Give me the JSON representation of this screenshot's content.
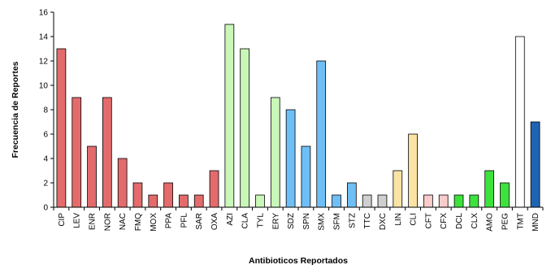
{
  "chart_data": {
    "type": "bar",
    "xlabel": "Antibioticos Reportados",
    "ylabel": "Frecuencia de Reportes",
    "ylim": [
      0,
      16
    ],
    "yticks": [
      0,
      2,
      4,
      6,
      8,
      10,
      12,
      14,
      16
    ],
    "grid": false,
    "legend": "none",
    "categories": [
      "CIP",
      "LEV",
      "ENR",
      "NOR",
      "NAC",
      "FMQ",
      "MOX",
      "PPA",
      "PFL",
      "SAR",
      "OXA",
      "AZI",
      "CLA",
      "TYL",
      "ERY",
      "SDZ",
      "SPN",
      "SMX",
      "SFM",
      "STZ",
      "TTC",
      "DXC",
      "LIN",
      "CLI",
      "CFT",
      "CFX",
      "DCL",
      "CLX",
      "AMO",
      "PEG",
      "TMT",
      "MND"
    ],
    "values": [
      13,
      9,
      5,
      9,
      4,
      2,
      1,
      2,
      1,
      1,
      3,
      15,
      13,
      1,
      9,
      8,
      5,
      12,
      1,
      2,
      1,
      1,
      3,
      6,
      1,
      1,
      1,
      1,
      3,
      2,
      14,
      7
    ],
    "bar_colors": [
      "#e36b6b",
      "#e36b6b",
      "#e36b6b",
      "#e36b6b",
      "#e36b6b",
      "#e36b6b",
      "#e36b6b",
      "#e36b6b",
      "#e36b6b",
      "#e36b6b",
      "#e36b6b",
      "#c9f7b8",
      "#c9f7b8",
      "#c9f7b8",
      "#c9f7b8",
      "#6fbff7",
      "#6fbff7",
      "#6fbff7",
      "#6fbff7",
      "#6fbff7",
      "#cfcfcf",
      "#cfcfcf",
      "#fbe3a6",
      "#fbe3a6",
      "#f9cccc",
      "#f9cccc",
      "#3de33d",
      "#3de33d",
      "#3de33d",
      "#3de33d",
      "#ffffff",
      "#1f64b4"
    ]
  }
}
